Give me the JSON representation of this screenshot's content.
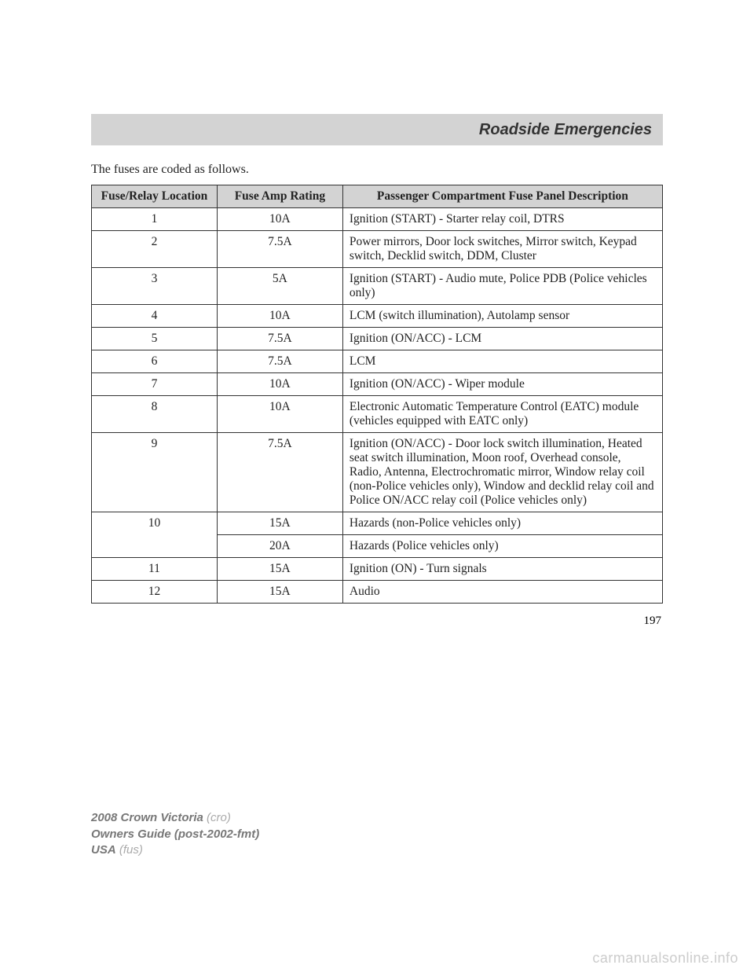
{
  "header": {
    "title": "Roadside Emergencies"
  },
  "intro": "The fuses are coded as follows.",
  "table": {
    "columns": {
      "loc": "Fuse/Relay Location",
      "amp": "Fuse Amp Rating",
      "desc": "Passenger Compartment Fuse Panel Description"
    },
    "rows": [
      {
        "loc": "1",
        "amp": "10A",
        "desc": "Ignition (START) - Starter relay coil, DTRS"
      },
      {
        "loc": "2",
        "amp": "7.5A",
        "desc": "Power mirrors, Door lock switches, Mirror switch, Keypad switch, Decklid switch, DDM, Cluster"
      },
      {
        "loc": "3",
        "amp": "5A",
        "desc": "Ignition (START) - Audio mute, Police PDB (Police vehicles only)"
      },
      {
        "loc": "4",
        "amp": "10A",
        "desc": "LCM (switch illumination), Autolamp sensor"
      },
      {
        "loc": "5",
        "amp": "7.5A",
        "desc": "Ignition (ON/ACC) - LCM"
      },
      {
        "loc": "6",
        "amp": "7.5A",
        "desc": "LCM"
      },
      {
        "loc": "7",
        "amp": "10A",
        "desc": "Ignition (ON/ACC) - Wiper module"
      },
      {
        "loc": "8",
        "amp": "10A",
        "desc": "Electronic Automatic Temperature Control (EATC) module (vehicles equipped with EATC only)"
      },
      {
        "loc": "9",
        "amp": "7.5A",
        "desc": "Ignition (ON/ACC) - Door lock switch illumination, Heated seat switch illumination, Moon roof, Overhead console, Radio, Antenna, Electrochromatic mirror, Window relay coil (non-Police vehicles only), Window and decklid relay coil and Police ON/ACC relay coil (Police vehicles only)"
      },
      {
        "loc": "10",
        "amp": "15A",
        "desc": "Hazards (non-Police vehicles only)",
        "rowspan_loc": 2
      },
      {
        "loc": "",
        "amp": "20A",
        "desc": "Hazards (Police vehicles only)",
        "skip_loc": true
      },
      {
        "loc": "11",
        "amp": "15A",
        "desc": "Ignition (ON) - Turn signals"
      },
      {
        "loc": "12",
        "amp": "15A",
        "desc": "Audio"
      }
    ]
  },
  "page_number": "197",
  "footer": {
    "line1_strong": "2008 Crown Victoria",
    "line1_light": " (cro)",
    "line2_strong": "Owners Guide (post-2002-fmt)",
    "line3_strong": "USA",
    "line3_light": " (fus)"
  },
  "watermark": "carmanualsonline.info"
}
